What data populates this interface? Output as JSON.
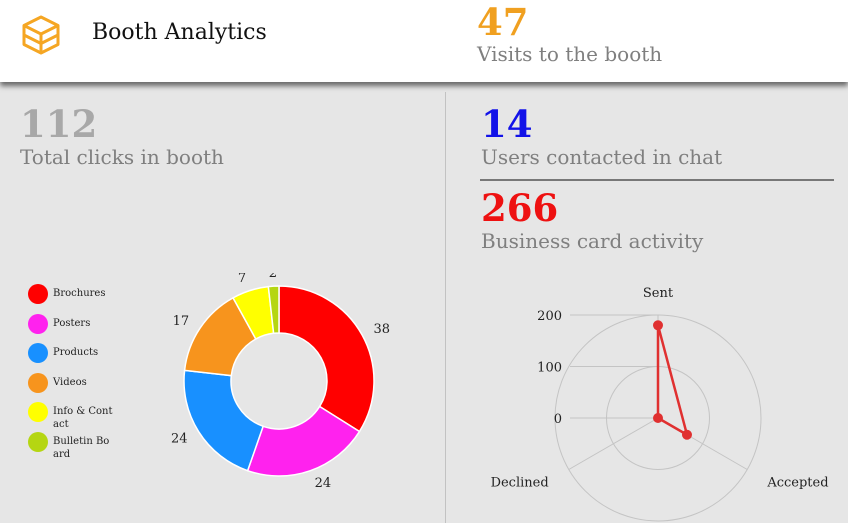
{
  "header": {
    "title": "Booth Analytics",
    "logo_icon": "cube-icon",
    "visits": {
      "value": "47",
      "label": "Visits to the booth",
      "color": "#f0a020"
    }
  },
  "stats": {
    "clicks": {
      "value": "112",
      "label": "Total clicks in booth",
      "color": "#a8a8a8"
    },
    "chat": {
      "value": "14",
      "label": "Users contacted in chat",
      "color": "#1212e8"
    },
    "cards": {
      "value": "266",
      "label": "Business card activity",
      "color": "#ee1111"
    }
  },
  "chart_data": [
    {
      "type": "pie",
      "variant": "donut",
      "legend_placement": "left",
      "slices": [
        {
          "label": "Brochures",
          "value": 38,
          "color": "#ff0000"
        },
        {
          "label": "Posters",
          "value": 24,
          "color": "#ff22ee"
        },
        {
          "label": "Products",
          "value": 24,
          "color": "#1890ff"
        },
        {
          "label": "Videos",
          "value": 17,
          "color": "#f7941d"
        },
        {
          "label": "Info & Contact",
          "value": 7,
          "color": "#ffff00"
        },
        {
          "label": "Bulletin Board",
          "value": 2,
          "color": "#b5d612"
        }
      ]
    },
    {
      "type": "radar",
      "axes": [
        "Sent",
        "Accepted",
        "Declined"
      ],
      "values": [
        180,
        65,
        0
      ],
      "radial_ticks": [
        0,
        100,
        200
      ],
      "range": [
        0,
        200
      ],
      "color": "#e03030"
    }
  ]
}
